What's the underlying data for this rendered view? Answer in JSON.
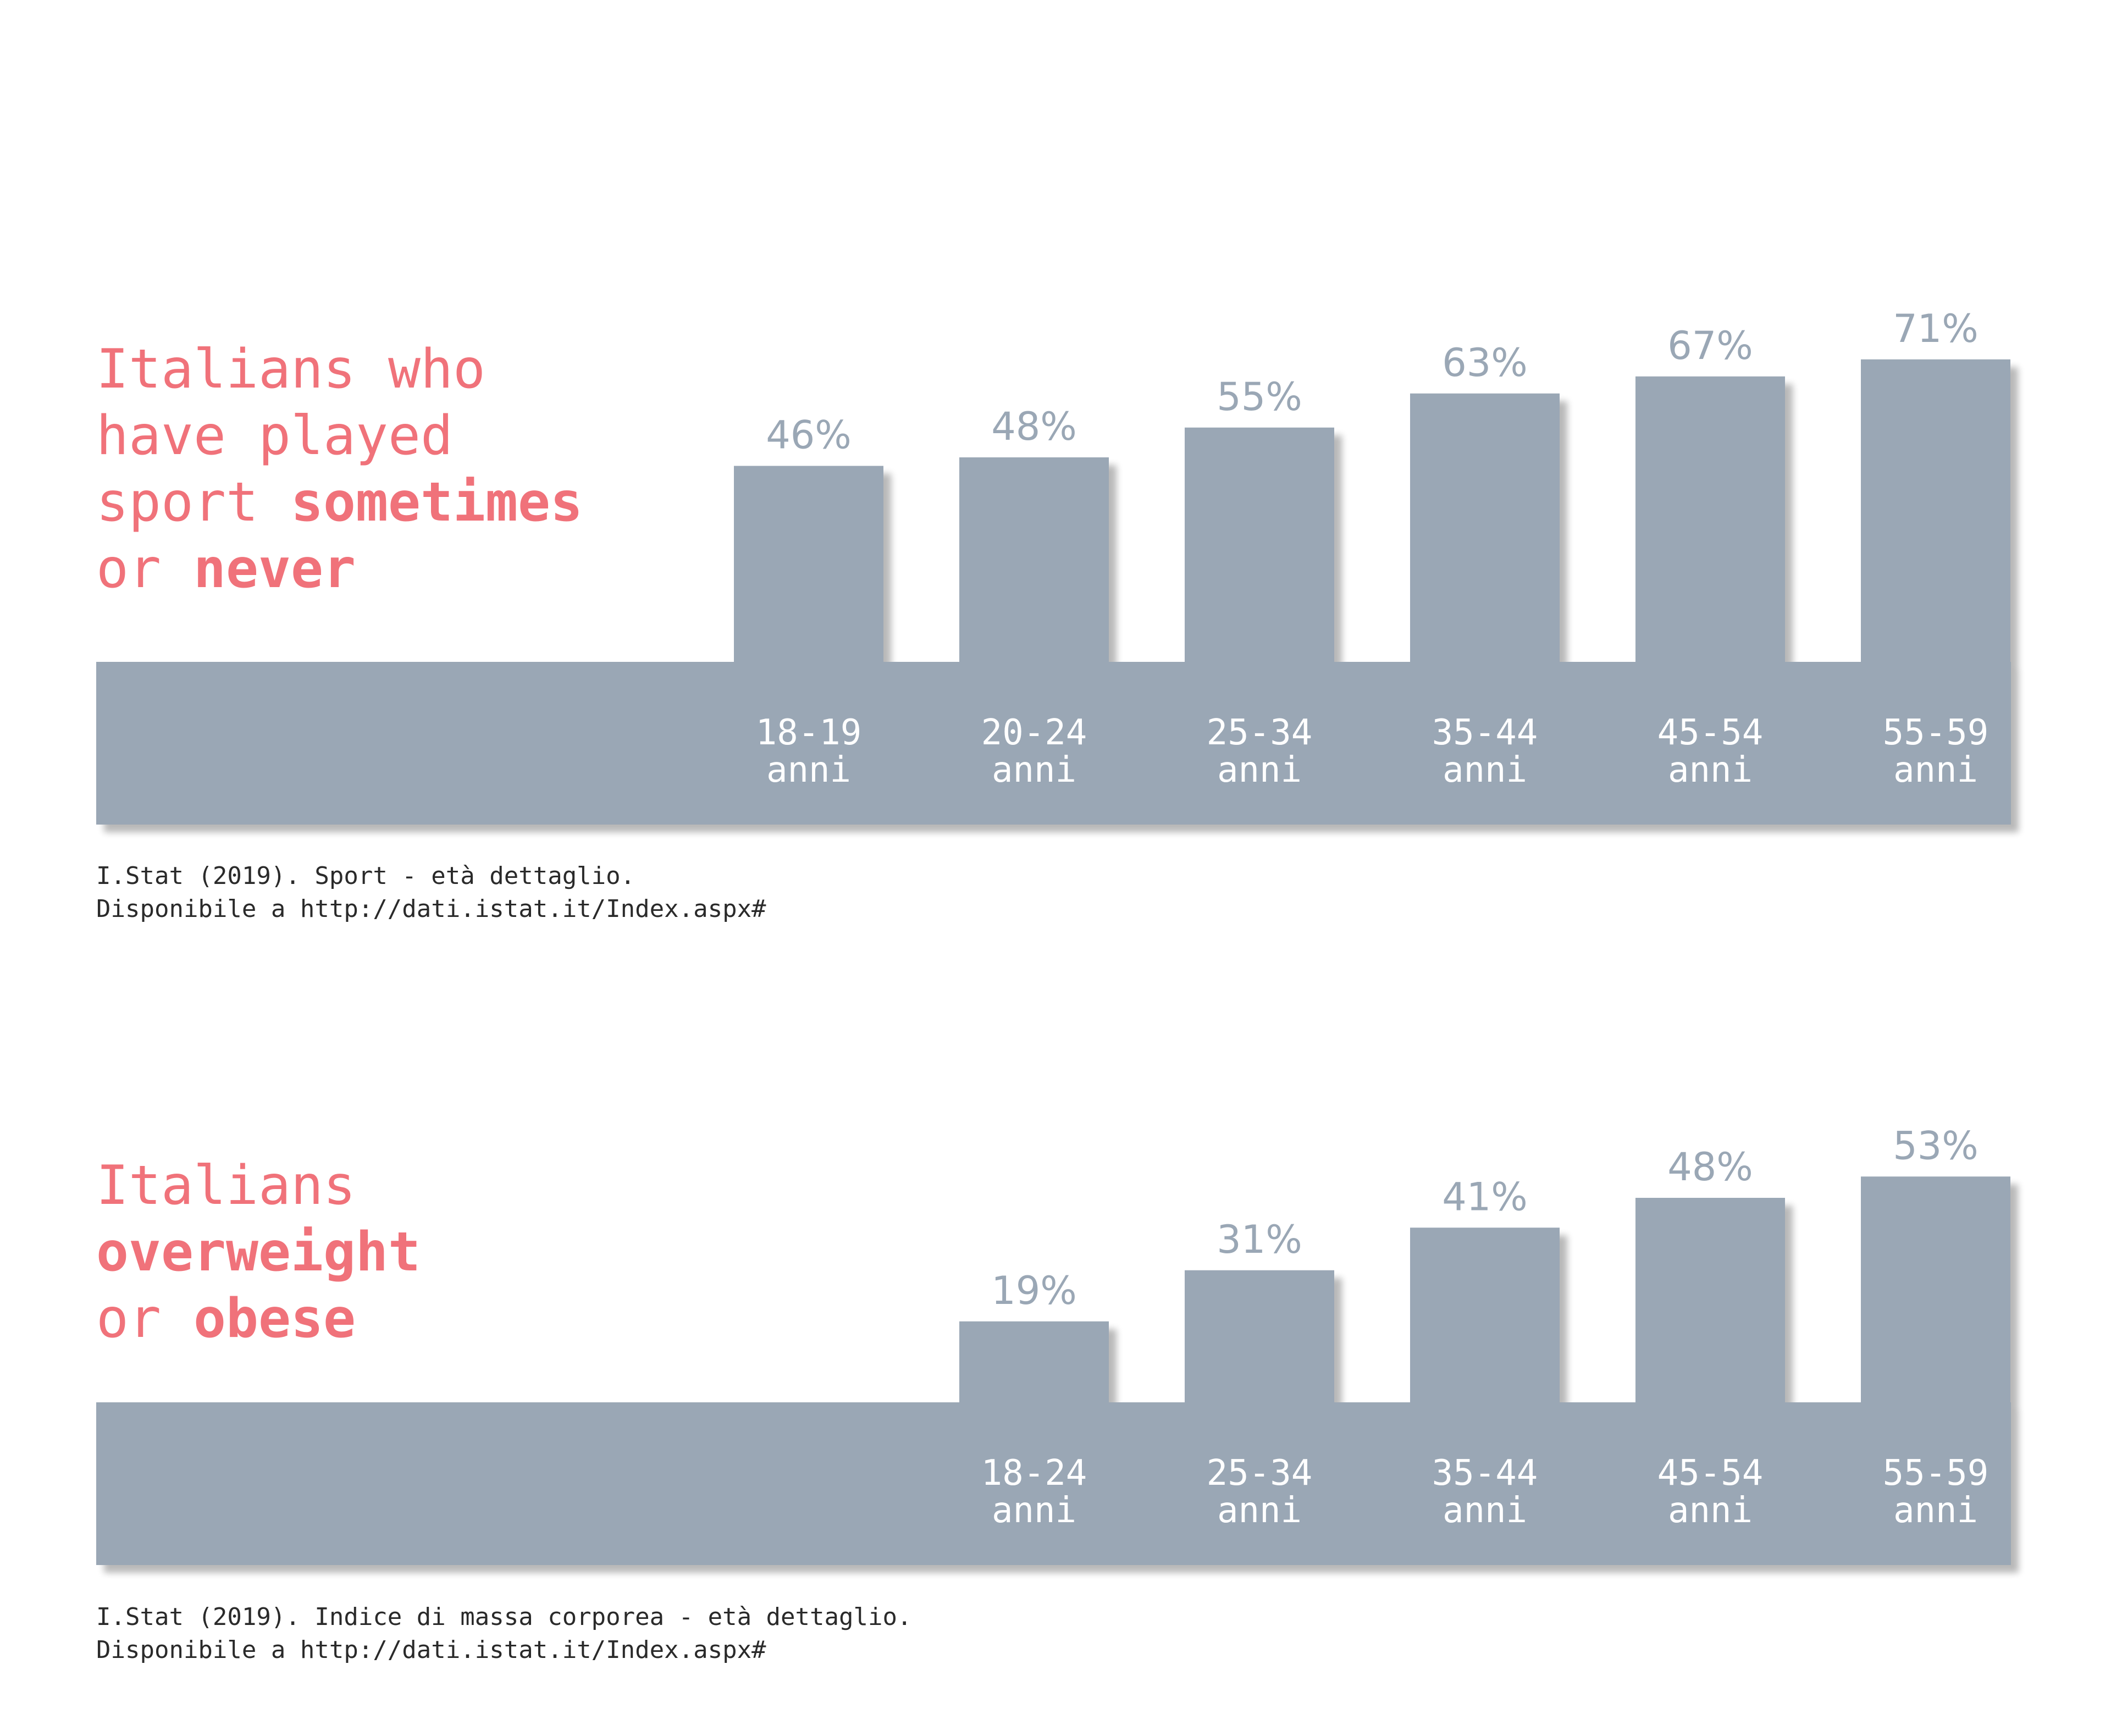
{
  "colors": {
    "bar": "#9aa7b5",
    "title": "#f0727a",
    "value": "#9aa7b5",
    "tick": "#ffffff",
    "source": "#2a2a2a"
  },
  "chart_data": [
    {
      "type": "bar",
      "title_lines": [
        [
          {
            "text": "Italians who",
            "bold": false
          }
        ],
        [
          {
            "text": "have played",
            "bold": false
          }
        ],
        [
          {
            "text": "sport ",
            "bold": false
          },
          {
            "text": "sometimes",
            "bold": true
          }
        ],
        [
          {
            "text": "or ",
            "bold": false
          },
          {
            "text": "never",
            "bold": true
          }
        ]
      ],
      "categories": [
        [
          "18-19",
          "anni"
        ],
        [
          "20-24",
          "anni"
        ],
        [
          "25-34",
          "anni"
        ],
        [
          "35-44",
          "anni"
        ],
        [
          "45-54",
          "anni"
        ],
        [
          "55-59",
          "anni"
        ]
      ],
      "values": [
        46,
        48,
        55,
        63,
        67,
        71
      ],
      "value_labels": [
        "46%",
        "48%",
        "55%",
        "63%",
        "67%",
        "71%"
      ],
      "unit": "%",
      "source_lines": [
        "I.Stat (2019). Sport - età dettaglio.",
        "Disponibile a http://dati.istat.it/Index.aspx#"
      ]
    },
    {
      "type": "bar",
      "title_lines": [
        [
          {
            "text": "Italians",
            "bold": false
          }
        ],
        [
          {
            "text": "overweight",
            "bold": true
          }
        ],
        [
          {
            "text": "or ",
            "bold": false
          },
          {
            "text": "obese",
            "bold": true
          }
        ]
      ],
      "categories": [
        [
          "18-24",
          "anni"
        ],
        [
          "25-34",
          "anni"
        ],
        [
          "35-44",
          "anni"
        ],
        [
          "45-54",
          "anni"
        ],
        [
          "55-59",
          "anni"
        ]
      ],
      "values": [
        19,
        31,
        41,
        48,
        53
      ],
      "value_labels": [
        "19%",
        "31%",
        "41%",
        "48%",
        "53%"
      ],
      "unit": "%",
      "source_lines": [
        "I.Stat (2019). Indice di massa corporea - età dettaglio.",
        "Disponibile a http://dati.istat.it/Index.aspx#"
      ]
    }
  ]
}
